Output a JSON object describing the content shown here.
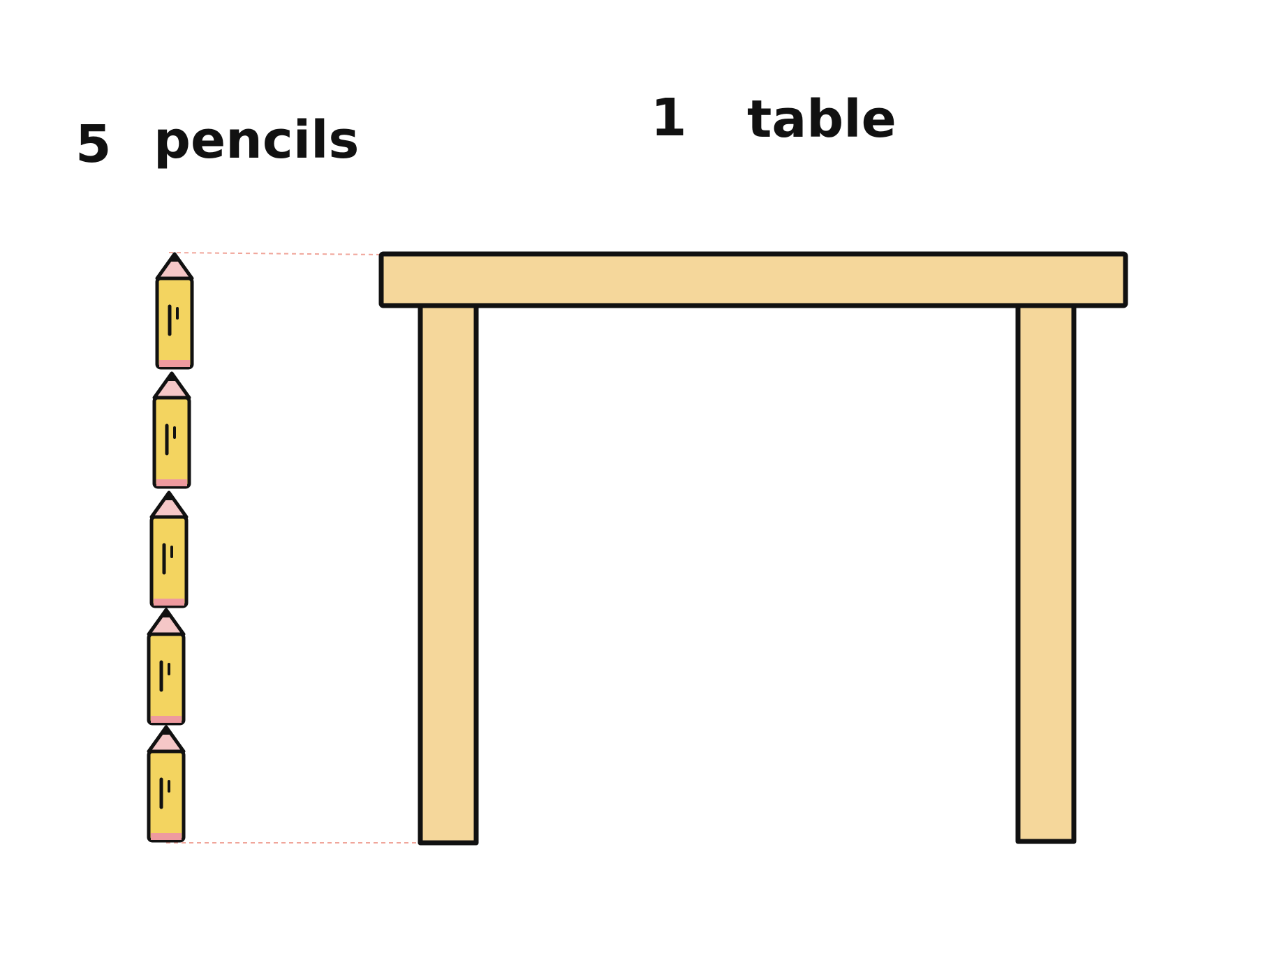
{
  "labels": {
    "pencil_count": "5",
    "pencil_word": "pencils",
    "table_count": "1",
    "table_word": "table"
  },
  "pencils": {
    "count": 5
  },
  "colors": {
    "pencil_body": "#F3D460",
    "pencil_eraser": "#EE9A9F",
    "pencil_tip": "#F5C7C7",
    "table_wood": "#F5D79B",
    "outline": "#111111",
    "guide_line": "#F0A59A",
    "background": "#FFFFFF"
  }
}
